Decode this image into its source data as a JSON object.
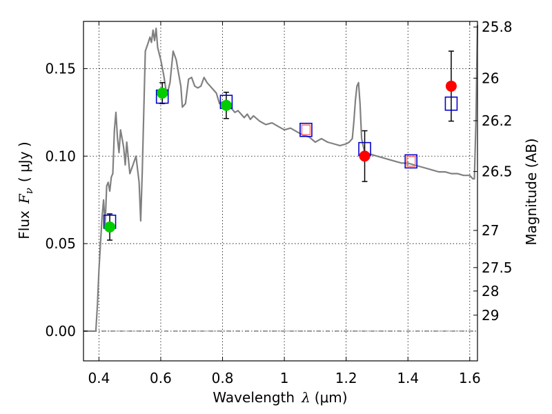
{
  "chart_data": {
    "type": "scatter",
    "xlabel_prefix": "Wavelength",
    "xlabel_symbol": "λ",
    "xlabel_unit": "(μm)",
    "ylabel_prefix": "Flux",
    "ylabel_symbol": "F",
    "ylabel_subscript": "ν",
    "ylabel_unit": "( μJy )",
    "y2label": "Magnitude (AB)",
    "xlim": [
      0.35,
      1.625
    ],
    "ylim": [
      -0.017,
      0.177
    ],
    "grid": true,
    "x_ticks": [
      {
        "value": 0.4,
        "label": "0.4"
      },
      {
        "value": 0.6,
        "label": "0.6"
      },
      {
        "value": 0.8,
        "label": "0.8"
      },
      {
        "value": 1.0,
        "label": "1"
      },
      {
        "value": 1.2,
        "label": "1.2"
      },
      {
        "value": 1.4,
        "label": "1.4"
      },
      {
        "value": 1.6,
        "label": "1.6"
      }
    ],
    "y_ticks": [
      {
        "value": 0.0,
        "label": "0.00"
      },
      {
        "value": 0.05,
        "label": "0.05"
      },
      {
        "value": 0.1,
        "label": "0.10"
      },
      {
        "value": 0.15,
        "label": "0.15"
      }
    ],
    "y2_ticks": [
      {
        "mag": 25.8,
        "label": "25.8"
      },
      {
        "mag": 26.0,
        "label": "26"
      },
      {
        "mag": 26.2,
        "label": "26.2"
      },
      {
        "mag": 26.5,
        "label": "26.5"
      },
      {
        "mag": 27.0,
        "label": "27"
      },
      {
        "mag": 27.5,
        "label": "27.5"
      },
      {
        "mag": 28.0,
        "label": "28"
      },
      {
        "mag": 29.0,
        "label": "29"
      }
    ],
    "zero_line": 0.0,
    "model_spectrum": {
      "color": "#808080",
      "x": [
        0.35,
        0.39,
        0.395,
        0.4,
        0.405,
        0.41,
        0.415,
        0.42,
        0.425,
        0.43,
        0.435,
        0.44,
        0.445,
        0.45,
        0.455,
        0.46,
        0.465,
        0.47,
        0.475,
        0.48,
        0.485,
        0.49,
        0.5,
        0.51,
        0.52,
        0.53,
        0.535,
        0.54,
        0.55,
        0.56,
        0.565,
        0.57,
        0.575,
        0.58,
        0.585,
        0.59,
        0.6,
        0.61,
        0.615,
        0.62,
        0.63,
        0.64,
        0.65,
        0.66,
        0.665,
        0.67,
        0.68,
        0.69,
        0.7,
        0.71,
        0.72,
        0.73,
        0.74,
        0.75,
        0.76,
        0.77,
        0.78,
        0.79,
        0.8,
        0.81,
        0.82,
        0.83,
        0.84,
        0.85,
        0.86,
        0.87,
        0.88,
        0.89,
        0.9,
        0.92,
        0.94,
        0.96,
        0.98,
        1.0,
        1.02,
        1.04,
        1.06,
        1.08,
        1.1,
        1.12,
        1.14,
        1.16,
        1.18,
        1.2,
        1.21,
        1.22,
        1.225,
        1.23,
        1.235,
        1.24,
        1.245,
        1.25,
        1.26,
        1.28,
        1.3,
        1.32,
        1.34,
        1.36,
        1.38,
        1.4,
        1.42,
        1.44,
        1.46,
        1.48,
        1.5,
        1.52,
        1.54,
        1.56,
        1.58,
        1.6,
        1.61,
        1.615,
        1.62,
        1.625
      ],
      "y": [
        0.0,
        0.0,
        0.015,
        0.035,
        0.05,
        0.065,
        0.075,
        0.06,
        0.083,
        0.085,
        0.08,
        0.088,
        0.09,
        0.115,
        0.125,
        0.11,
        0.102,
        0.115,
        0.11,
        0.105,
        0.095,
        0.108,
        0.09,
        0.095,
        0.1,
        0.085,
        0.063,
        0.09,
        0.16,
        0.165,
        0.168,
        0.165,
        0.172,
        0.166,
        0.173,
        0.162,
        0.155,
        0.146,
        0.14,
        0.135,
        0.142,
        0.16,
        0.155,
        0.145,
        0.14,
        0.128,
        0.13,
        0.144,
        0.145,
        0.14,
        0.139,
        0.14,
        0.145,
        0.142,
        0.14,
        0.138,
        0.136,
        0.13,
        0.131,
        0.13,
        0.129,
        0.127,
        0.125,
        0.126,
        0.124,
        0.122,
        0.124,
        0.121,
        0.123,
        0.12,
        0.118,
        0.119,
        0.117,
        0.115,
        0.116,
        0.114,
        0.112,
        0.111,
        0.108,
        0.11,
        0.108,
        0.107,
        0.106,
        0.107,
        0.108,
        0.11,
        0.12,
        0.132,
        0.14,
        0.142,
        0.13,
        0.11,
        0.102,
        0.101,
        0.1,
        0.099,
        0.098,
        0.097,
        0.096,
        0.096,
        0.095,
        0.094,
        0.093,
        0.092,
        0.091,
        0.091,
        0.09,
        0.09,
        0.089,
        0.089,
        0.087,
        0.087,
        0.12,
        0.175
      ]
    },
    "observed_green": {
      "color": "#00cc00",
      "x": [
        0.435,
        0.605,
        0.812
      ],
      "y": [
        0.0595,
        0.136,
        0.129
      ],
      "err": [
        0.0075,
        0.006,
        0.0075
      ]
    },
    "observed_red": {
      "color": "#ff0000",
      "x": [
        1.26,
        1.54
      ],
      "y": [
        0.1,
        0.14
      ],
      "err": [
        0.0145,
        0.02
      ]
    },
    "model_bandpass_blue": {
      "color": "#0000cc",
      "x": [
        0.435,
        0.605,
        0.812,
        1.07,
        1.26,
        1.41,
        1.54
      ],
      "y": [
        0.0625,
        0.134,
        0.131,
        0.115,
        0.104,
        0.097,
        0.13
      ]
    },
    "model_bandpass_red_inner": {
      "color": "#ff6666",
      "x": [
        1.07,
        1.41
      ],
      "y": [
        0.115,
        0.097
      ]
    }
  }
}
